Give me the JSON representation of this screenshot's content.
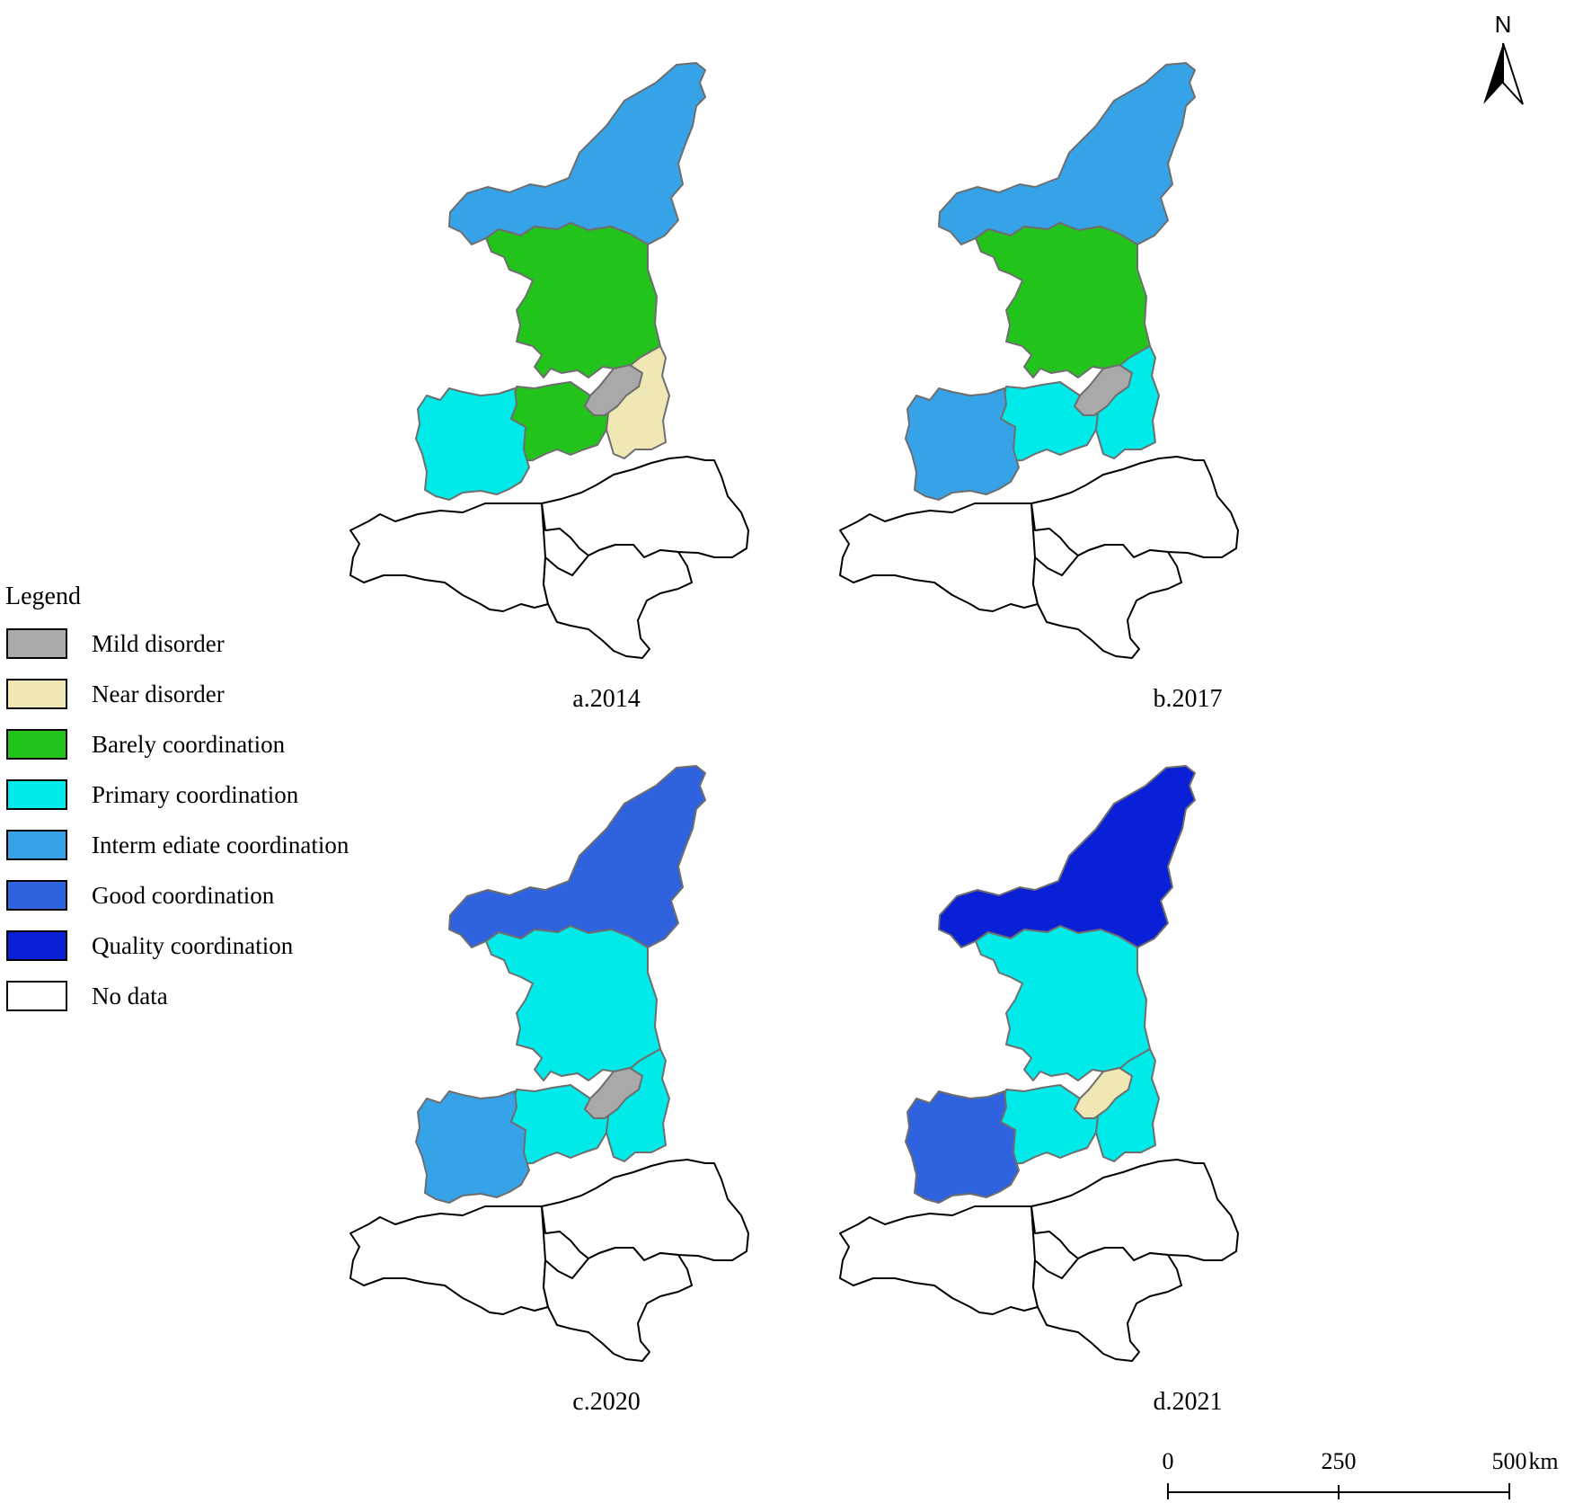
{
  "colors": {
    "mild_disorder": "#a9a9a9",
    "near_disorder": "#f0e8b4",
    "barely_coordination": "#22c41c",
    "primary_coordination": "#00eaea",
    "intermediate_coordination": "#36a2e8",
    "good_coordination": "#2e62de",
    "quality_coordination": "#0a20d6",
    "no_data": "#ffffff",
    "boundary": "#6e6e6e"
  },
  "legend": {
    "title": "Legend",
    "items": [
      {
        "label": "Mild disorder",
        "color": "#a9a9a9"
      },
      {
        "label": "Near disorder",
        "color": "#f0e8b4"
      },
      {
        "label": "Barely coordination",
        "color": "#22c41c"
      },
      {
        "label": "Primary coordination",
        "color": "#00eaea"
      },
      {
        "label": "Interm ediate coordination",
        "color": "#36a2e8"
      },
      {
        "label": "Good coordination",
        "color": "#2e62de"
      },
      {
        "label": "Quality coordination",
        "color": "#0a20d6"
      },
      {
        "label": "No data",
        "color": "#ffffff"
      }
    ]
  },
  "north_arrow": {
    "label": "N"
  },
  "scale_bar": {
    "ticks": [
      "0",
      "250",
      "500"
    ],
    "unit": "km"
  },
  "maps": [
    {
      "caption": "a.2014",
      "regions": {
        "north": "intermediate_coordination",
        "central": "barely_coordination",
        "west": "barely_coordination",
        "east": "near_disorder",
        "capital": "mild_disorder",
        "southwest": "primary_coordination",
        "south_a": "no_data",
        "south_b": "no_data",
        "south_c": "no_data"
      }
    },
    {
      "caption": "b.2017",
      "regions": {
        "north": "intermediate_coordination",
        "central": "barely_coordination",
        "west": "primary_coordination",
        "east": "primary_coordination",
        "capital": "mild_disorder",
        "southwest": "intermediate_coordination",
        "south_a": "no_data",
        "south_b": "no_data",
        "south_c": "no_data"
      }
    },
    {
      "caption": "c.2020",
      "regions": {
        "north": "good_coordination",
        "central": "primary_coordination",
        "west": "primary_coordination",
        "east": "primary_coordination",
        "capital": "mild_disorder",
        "southwest": "intermediate_coordination",
        "south_a": "no_data",
        "south_b": "no_data",
        "south_c": "no_data"
      }
    },
    {
      "caption": "d.2021",
      "regions": {
        "north": "quality_coordination",
        "central": "primary_coordination",
        "west": "primary_coordination",
        "east": "primary_coordination",
        "capital": "near_disorder",
        "southwest": "good_coordination",
        "south_a": "no_data",
        "south_b": "no_data",
        "south_c": "no_data"
      }
    }
  ]
}
